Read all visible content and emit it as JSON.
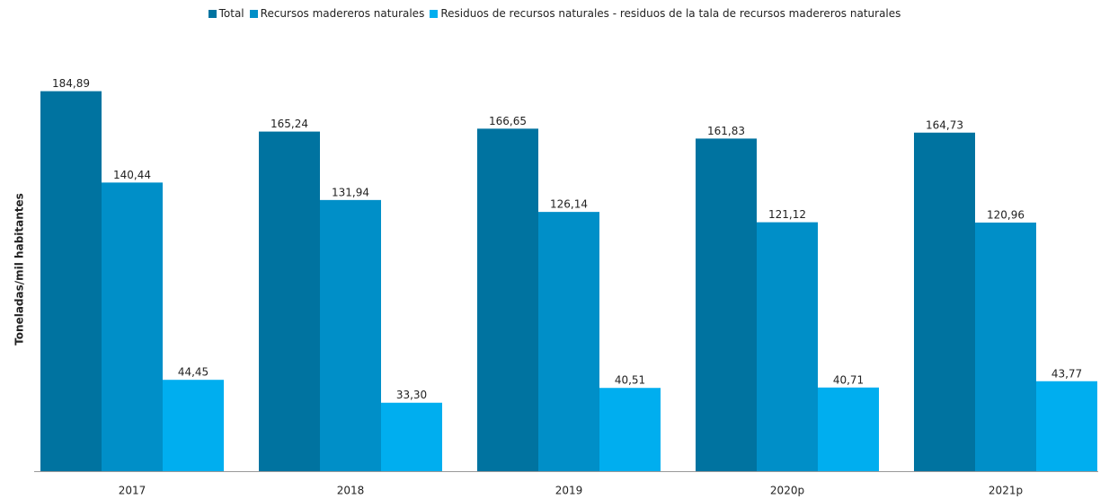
{
  "chart_data": {
    "type": "bar",
    "y_label": "Toneladas/mil habitantes",
    "categories": [
      "2017",
      "2018",
      "2019",
      "2020p",
      "2021p"
    ],
    "series": [
      {
        "name": "Total",
        "color": "#0073a0",
        "values": [
          184.89,
          165.24,
          166.65,
          161.83,
          164.73
        ],
        "value_labels": [
          "184,89",
          "165,24",
          "166,65",
          "161,83",
          "164,73"
        ]
      },
      {
        "name": "Recursos madereros naturales",
        "color": "#008fc8",
        "values": [
          140.44,
          131.94,
          126.14,
          121.12,
          120.96
        ],
        "value_labels": [
          "140,44",
          "131,94",
          "126,14",
          "121,12",
          "120,96"
        ]
      },
      {
        "name": "Residuos de recursos naturales - residuos de la tala de recursos madereros naturales",
        "color": "#00aeef",
        "values": [
          44.45,
          33.3,
          40.51,
          40.71,
          43.77
        ],
        "value_labels": [
          "44,45",
          "33,30",
          "40,51",
          "40,71",
          "43,77"
        ]
      }
    ],
    "ylim": [
      0,
      200
    ],
    "legend": "top"
  }
}
